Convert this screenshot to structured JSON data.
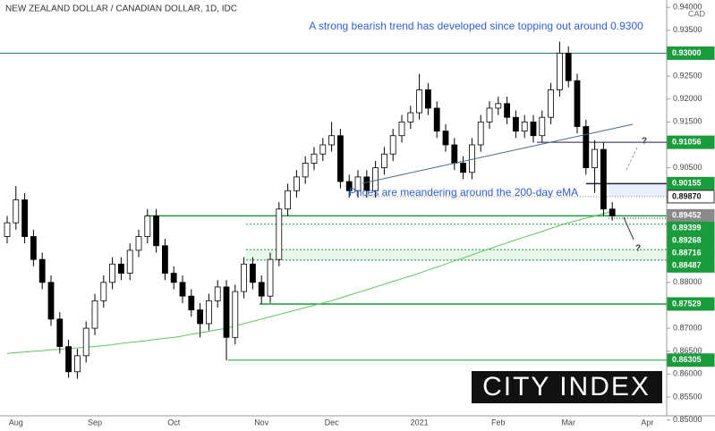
{
  "chart_data": {
    "type": "candlestick",
    "title": "NEW ZEALAND DOLLAR / CANADIAN DOLLAR, 1D, IDC",
    "currency": "CAD",
    "logo": "CITY INDEX",
    "annotations": [
      "A strong bearish trend has developed since topping out around 0.9300",
      "Prices are meandering around the 200-day eMA",
      "?",
      "?"
    ],
    "up_color": "#ffffff",
    "down_color": "#000000",
    "ema_color": "#5cc85c",
    "categories": [
      null,
      "Aug",
      null,
      null,
      null,
      null,
      null,
      null,
      null,
      null,
      "Sep",
      null,
      null,
      null,
      null,
      null,
      null,
      null,
      null,
      "Oct",
      null,
      null,
      null,
      null,
      null,
      null,
      null,
      null,
      null,
      "Nov",
      null,
      null,
      null,
      null,
      null,
      null,
      null,
      "Dec",
      null,
      null,
      null,
      null,
      null,
      null,
      null,
      null,
      null,
      "2021",
      null,
      null,
      null,
      null,
      null,
      null,
      null,
      null,
      "Feb",
      null,
      null,
      null,
      null,
      null,
      null,
      null,
      "Mar",
      null,
      null,
      null,
      null,
      null,
      null,
      null,
      null,
      "Apr",
      null
    ],
    "open": [
      0.89,
      0.893,
      0.898,
      0.89,
      0.885,
      0.88,
      0.872,
      0.866,
      0.8605,
      0.864,
      0.87,
      0.876,
      0.88,
      0.884,
      0.882,
      0.887,
      0.89,
      0.8945,
      0.888,
      0.882,
      0.88,
      0.877,
      0.874,
      0.871,
      0.876,
      0.879,
      0.868,
      0.878,
      0.884,
      0.88,
      0.877,
      0.885,
      0.896,
      0.9,
      0.903,
      0.906,
      0.908,
      0.91,
      0.912,
      0.902,
      0.9,
      0.903,
      0.9,
      0.905,
      0.908,
      0.912,
      0.915,
      0.917,
      0.922,
      0.918,
      0.913,
      0.91,
      0.906,
      0.904,
      0.91,
      0.915,
      0.918,
      0.919,
      0.916,
      0.913,
      0.915,
      0.912,
      0.916,
      0.922,
      0.93,
      0.924,
      0.914,
      0.905,
      0.909,
      0.896,
      null,
      null,
      null,
      null,
      null
    ],
    "high": [
      0.8945,
      0.901,
      0.8995,
      0.8915,
      0.8865,
      0.8815,
      0.8735,
      0.8675,
      0.8655,
      0.8715,
      0.8775,
      0.8815,
      0.8855,
      0.8855,
      0.8885,
      0.8915,
      0.896,
      0.896,
      0.8895,
      0.8835,
      0.8815,
      0.8785,
      0.8755,
      0.8775,
      0.8805,
      0.8805,
      0.8795,
      0.8855,
      0.8855,
      0.8815,
      0.8865,
      0.8975,
      0.9015,
      0.9045,
      0.9075,
      0.9095,
      0.9115,
      0.915,
      0.9135,
      0.9035,
      0.9045,
      0.9045,
      0.9065,
      0.9095,
      0.9135,
      0.9165,
      0.9185,
      0.9255,
      0.9235,
      0.9195,
      0.9145,
      0.9115,
      0.9075,
      0.9115,
      0.9165,
      0.9195,
      0.9205,
      0.9205,
      0.9175,
      0.9165,
      0.9165,
      0.9175,
      0.9235,
      0.9325,
      0.9315,
      0.9255,
      0.9155,
      0.911,
      0.9105,
      0.8975,
      null,
      null,
      null,
      null,
      null
    ],
    "low": [
      0.8885,
      0.8915,
      0.8885,
      0.8835,
      0.8785,
      0.8705,
      0.8645,
      0.8592,
      0.859,
      0.8625,
      0.8685,
      0.8745,
      0.8785,
      0.8805,
      0.8805,
      0.8855,
      0.8885,
      0.8865,
      0.8805,
      0.8785,
      0.8755,
      0.8725,
      0.868,
      0.8695,
      0.8745,
      0.863,
      0.8665,
      0.8765,
      0.8785,
      0.8753,
      0.8755,
      0.8835,
      0.8945,
      0.8985,
      0.9015,
      0.9045,
      0.9065,
      0.9085,
      0.9005,
      0.8985,
      0.8985,
      0.8985,
      0.8985,
      0.9035,
      0.9065,
      0.9105,
      0.9135,
      0.9155,
      0.9165,
      0.9115,
      0.9085,
      0.9045,
      0.9025,
      0.9025,
      0.9085,
      0.9135,
      0.9165,
      0.9145,
      0.9115,
      0.9115,
      0.9105,
      0.9105,
      0.9145,
      0.9205,
      0.9225,
      0.9125,
      0.9035,
      0.8995,
      0.8945,
      0.8935,
      null,
      null,
      null,
      null,
      null
    ],
    "close": [
      0.893,
      0.898,
      0.89,
      0.885,
      0.88,
      0.872,
      0.866,
      0.8605,
      0.864,
      0.87,
      0.876,
      0.88,
      0.884,
      0.882,
      0.887,
      0.89,
      0.8945,
      0.888,
      0.882,
      0.88,
      0.877,
      0.874,
      0.871,
      0.876,
      0.879,
      0.868,
      0.878,
      0.884,
      0.88,
      0.877,
      0.885,
      0.896,
      0.9,
      0.903,
      0.906,
      0.908,
      0.91,
      0.912,
      0.902,
      0.9,
      0.903,
      0.9,
      0.905,
      0.908,
      0.912,
      0.915,
      0.917,
      0.922,
      0.918,
      0.913,
      0.91,
      0.906,
      0.904,
      0.91,
      0.915,
      0.918,
      0.919,
      0.916,
      0.913,
      0.915,
      0.912,
      0.916,
      0.922,
      0.93,
      0.924,
      0.914,
      0.905,
      0.909,
      0.896,
      0.8945,
      null,
      null,
      null,
      null,
      null
    ],
    "ema": [
      0.8645,
      0.8647,
      0.8648,
      0.865,
      0.8651,
      0.8653,
      0.8654,
      0.8656,
      0.8657,
      0.8659,
      0.866,
      0.8662,
      0.8664,
      0.8667,
      0.8669,
      0.8671,
      0.8673,
      0.8676,
      0.8678,
      0.868,
      0.8683,
      0.8687,
      0.869,
      0.8693,
      0.8697,
      0.87,
      0.8705,
      0.871,
      0.8715,
      0.872,
      0.8725,
      0.873,
      0.8735,
      0.874,
      0.8745,
      0.875,
      0.8755,
      0.876,
      0.8766,
      0.8772,
      0.8778,
      0.8784,
      0.879,
      0.8796,
      0.8802,
      0.8808,
      0.8814,
      0.882,
      0.8827,
      0.8833,
      0.884,
      0.8847,
      0.8853,
      0.886,
      0.8867,
      0.8873,
      0.888,
      0.8886,
      0.8893,
      0.8899,
      0.8905,
      0.8911,
      0.8918,
      0.8924,
      0.893,
      0.8935,
      0.894,
      0.8945,
      0.895,
      0.8955,
      null,
      null,
      null,
      null,
      null
    ],
    "ylim": [
      0.8509,
      0.9414
    ],
    "yticks": [
      {
        "value": 0.94,
        "label": "0.94000"
      },
      {
        "value": 0.935,
        "label": "0.93500"
      },
      {
        "value": 0.925,
        "label": "0.92500"
      },
      {
        "value": 0.92,
        "label": "0.92000"
      },
      {
        "value": 0.915,
        "label": "0.91500"
      },
      {
        "value": 0.905,
        "label": "0.90500"
      },
      {
        "value": 0.88,
        "label": "0.88000"
      },
      {
        "value": 0.87,
        "label": "0.87000"
      },
      {
        "value": 0.865,
        "label": "0.86500"
      },
      {
        "value": 0.86,
        "label": "0.86000"
      },
      {
        "value": 0.855,
        "label": "0.85500"
      },
      {
        "value": 0.85,
        "label": "0.85000"
      }
    ],
    "levels": [
      {
        "value": 0.93,
        "label": "0.93000",
        "color": "#1a9c3c"
      },
      {
        "value": 0.91056,
        "label": "0.91056",
        "color": "#1a9c3c"
      },
      {
        "value": 0.90155,
        "label": "0.90155",
        "color": "#1a9c3c"
      },
      {
        "value": 0.8987,
        "label": "0.89870",
        "color": "#ffffff"
      },
      {
        "value": 0.89452,
        "label": "0.89452",
        "color": "#8a8a8a"
      },
      {
        "value": 0.89399,
        "label": "0.89399",
        "color": "#1a9c3c"
      },
      {
        "value": 0.89268,
        "label": "0.89268",
        "color": "#1a9c3c"
      },
      {
        "value": 0.88716,
        "label": "0.88716",
        "color": "#1a9c3c"
      },
      {
        "value": 0.88487,
        "label": "0.88487",
        "color": "#1a9c3c"
      },
      {
        "value": 0.87529,
        "label": "0.87529",
        "color": "#1a9c3c"
      },
      {
        "value": 0.86305,
        "label": "0.86305",
        "color": "#1a9c3c"
      }
    ]
  }
}
